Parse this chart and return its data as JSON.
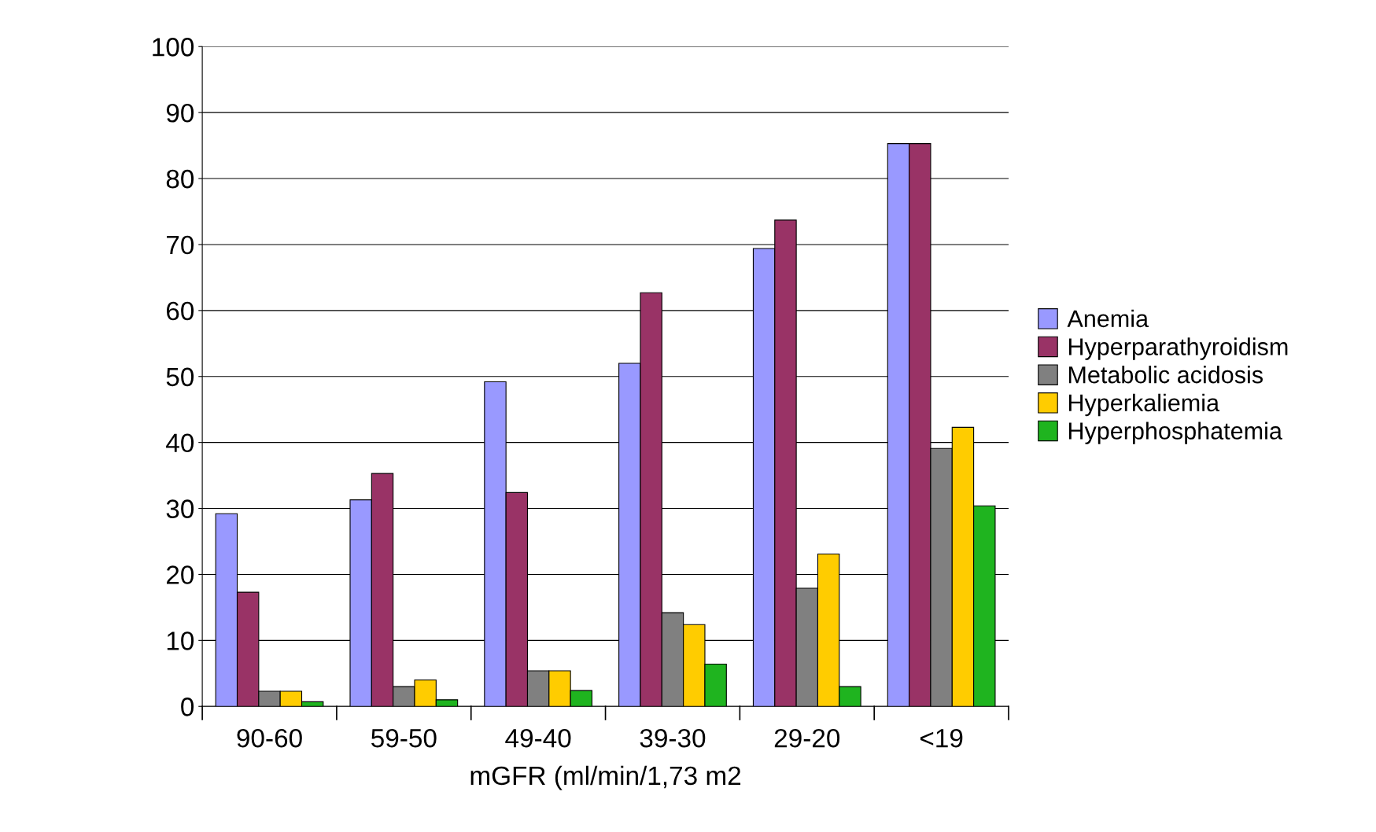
{
  "chart_data": {
    "type": "bar",
    "xlabel": "mGFR (ml/min/1,73 m2",
    "categories": [
      "90-60",
      "59-50",
      "49-40",
      "39-30",
      "29-20",
      "<19"
    ],
    "series": [
      {
        "name": "Anemia",
        "color": "#9999ff",
        "values": [
          29.2,
          31.3,
          49.2,
          52.0,
          69.4,
          85.3
        ]
      },
      {
        "name": "Hyperparathyroidism",
        "color": "#993366",
        "values": [
          17.3,
          35.3,
          32.4,
          62.7,
          73.7,
          85.3
        ]
      },
      {
        "name": "Metabolic acidosis",
        "color": "#808080",
        "values": [
          2.3,
          3.0,
          5.4,
          14.2,
          17.9,
          39.1
        ]
      },
      {
        "name": "Hyperkaliemia",
        "color": "#ffcc00",
        "values": [
          2.3,
          4.0,
          5.4,
          12.4,
          23.1,
          42.3
        ]
      },
      {
        "name": "Hyperphosphatemia",
        "color": "#1fb41f",
        "values": [
          0.7,
          1.0,
          2.4,
          6.4,
          3.0,
          30.4
        ]
      }
    ],
    "ylim": [
      0,
      100
    ],
    "yticks": [
      0,
      10,
      20,
      30,
      40,
      50,
      60,
      70,
      80,
      90,
      100
    ],
    "grid": "y",
    "legend": "right"
  }
}
